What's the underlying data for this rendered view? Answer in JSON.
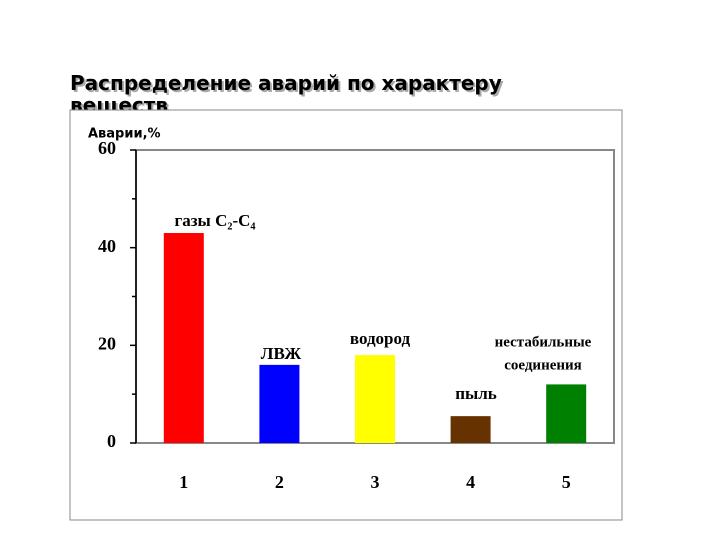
{
  "chart_data": {
    "type": "bar",
    "title": "Распределение аварий по характеру веществ",
    "ylabel": "Аварии,%",
    "categories": [
      "1",
      "2",
      "3",
      "4",
      "5"
    ],
    "values": [
      43,
      16,
      18,
      5.5,
      12
    ],
    "colors": [
      "#ff0000",
      "#0000ff",
      "#ffff00",
      "#663300",
      "#008000"
    ],
    "bar_labels": [
      [
        "газы C₂-C₄"
      ],
      [
        "ЛВЖ"
      ],
      [
        "водород"
      ],
      [
        "пыль"
      ],
      [
        "нестабильные",
        "соединения"
      ]
    ],
    "ylim": [
      0,
      60
    ],
    "yticks": [
      0,
      20,
      40,
      60
    ]
  }
}
